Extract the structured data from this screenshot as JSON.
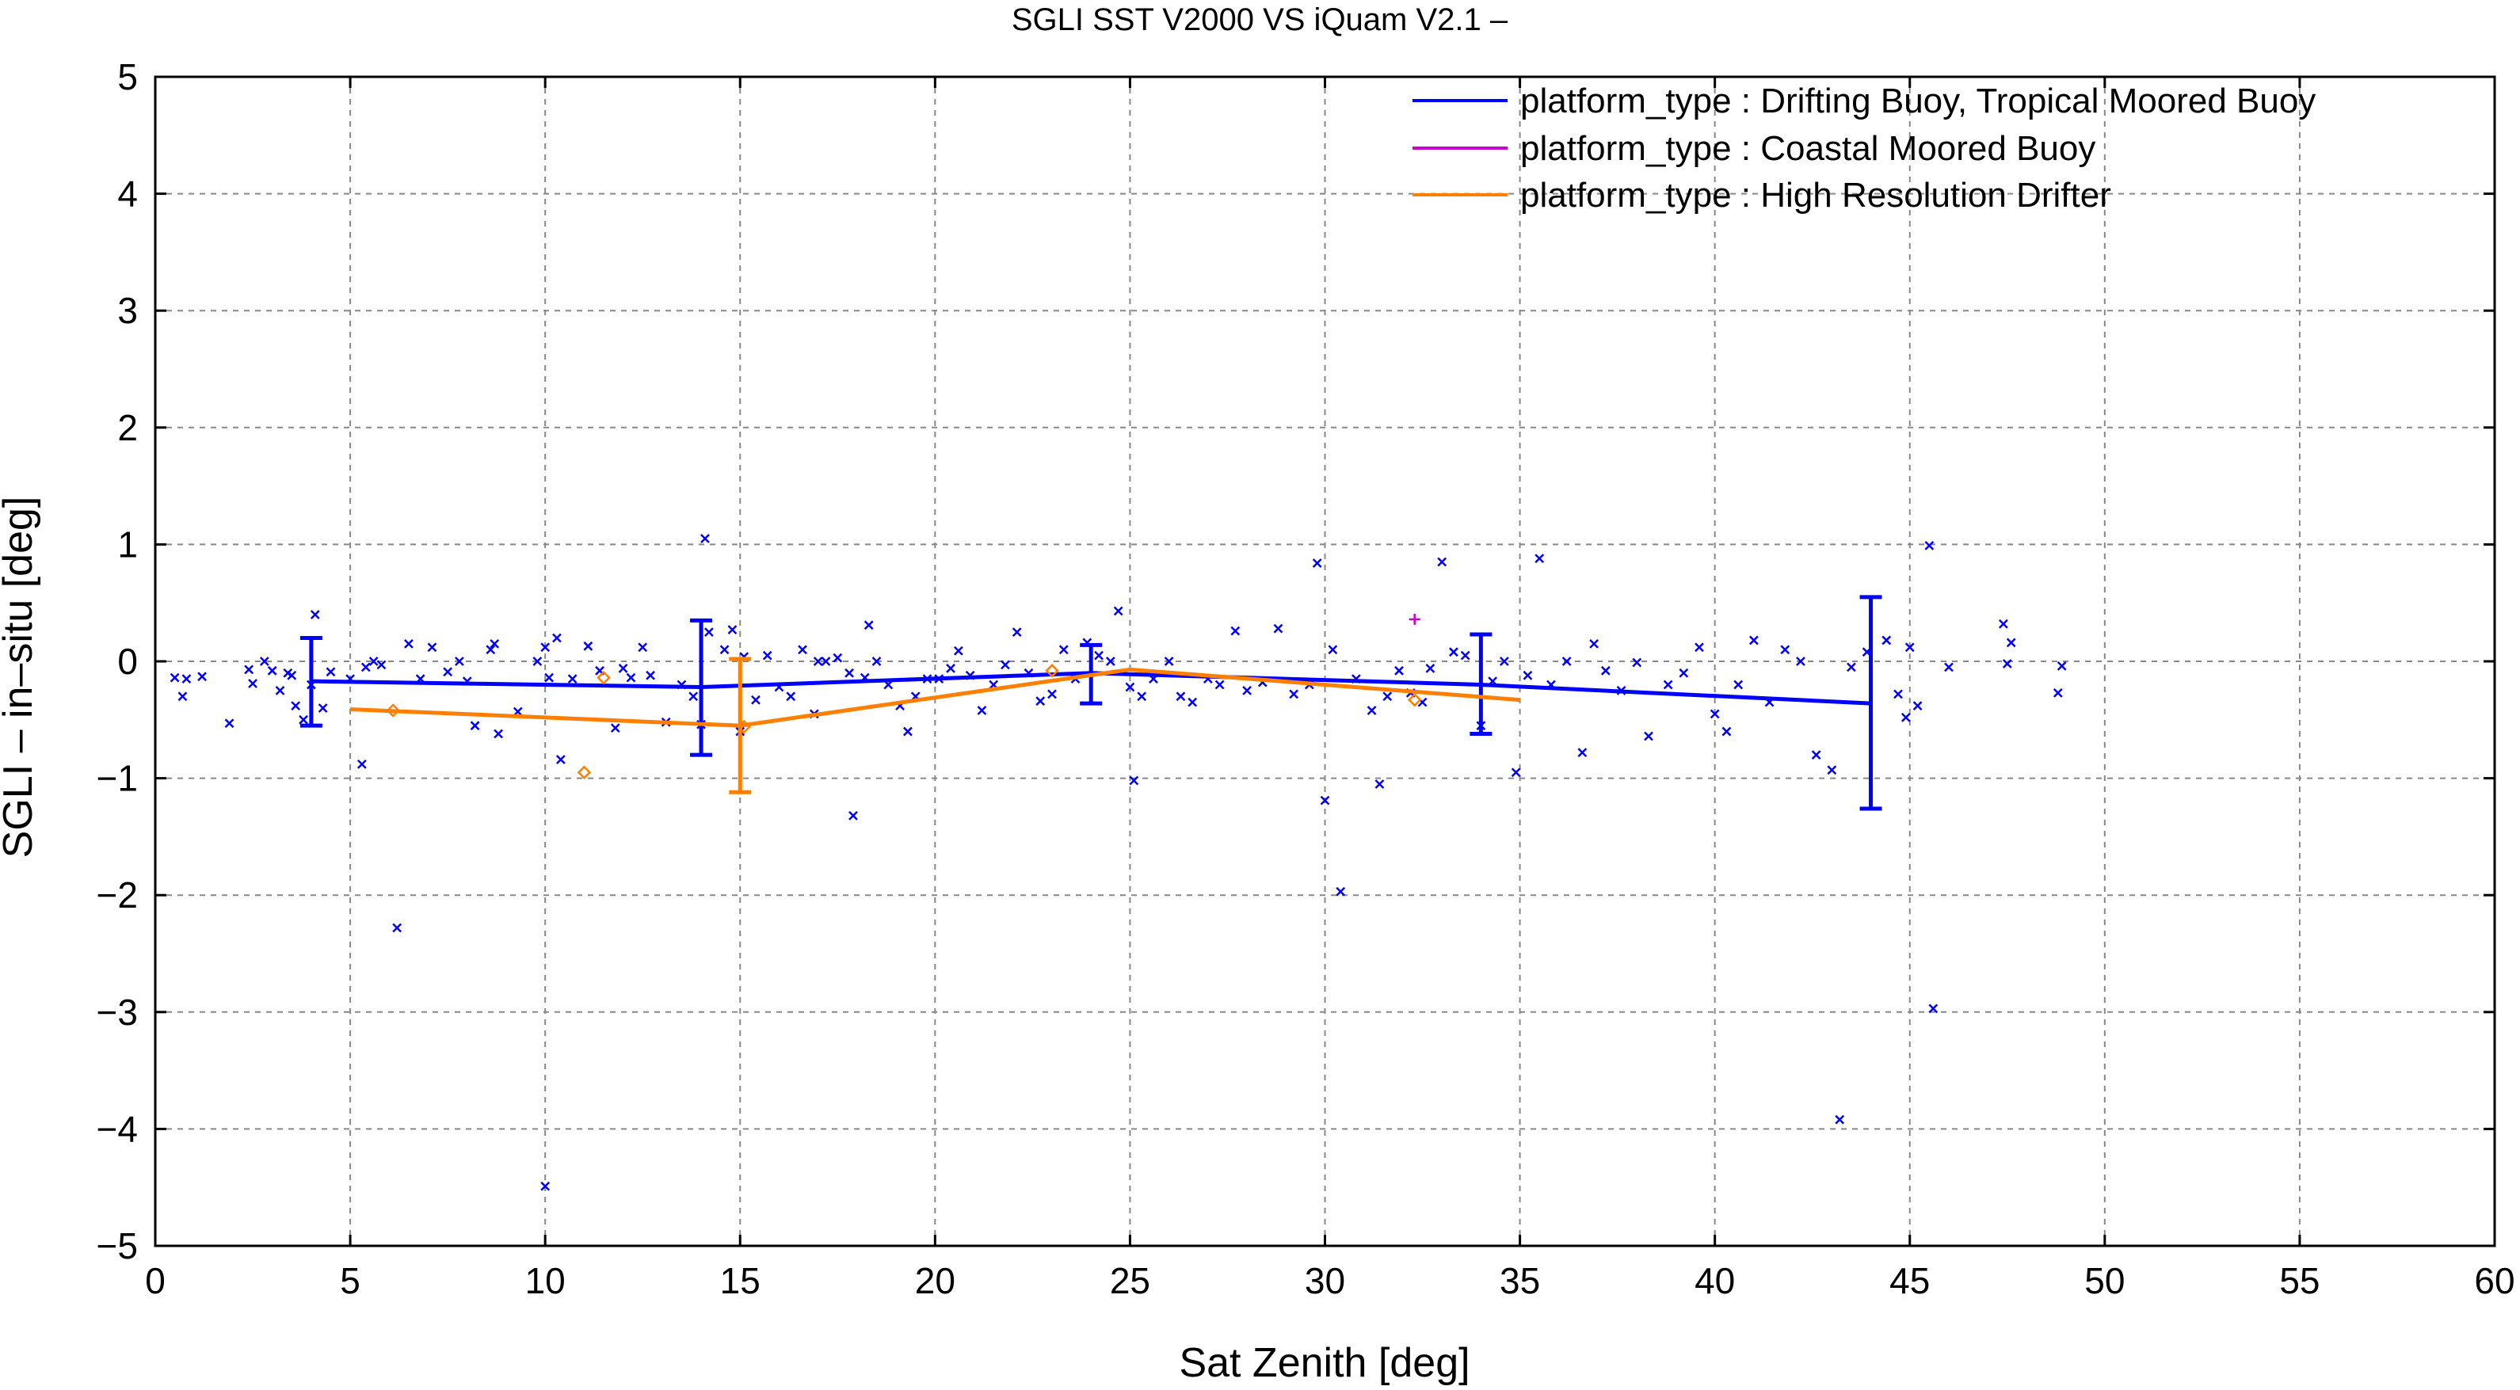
{
  "chart_data": {
    "type": "scatter",
    "title": "SGLI SST V2000 VS iQuam V2.1  –",
    "xlabel": "Sat Zenith [deg]",
    "ylabel": "SGLI – in–situ [deg]",
    "xlim": [
      0,
      60
    ],
    "ylim": [
      -5,
      5
    ],
    "xticks": [
      0,
      5,
      10,
      15,
      20,
      25,
      30,
      35,
      40,
      45,
      50,
      55,
      60
    ],
    "xtick_labels": [
      "0",
      "5",
      "10",
      "15",
      "20",
      "25",
      "30",
      "35",
      "40",
      "45",
      "50",
      "55",
      "60"
    ],
    "yticks": [
      5,
      4,
      3,
      2,
      1,
      0,
      -1,
      -2,
      -3,
      -4,
      -5
    ],
    "ytick_labels": [
      "5",
      "4",
      "3",
      "2",
      "1",
      "0",
      "−1",
      "−2",
      "−3",
      "−4",
      "−5"
    ],
    "grid": true,
    "legend_position": "top-right",
    "series": [
      {
        "name": "platform_type : Drifting Buoy, Tropical Moored Buoy",
        "color": "#0000ff",
        "marker": "x",
        "points": [
          [
            0.5,
            -0.14
          ],
          [
            0.7,
            -0.3
          ],
          [
            0.8,
            -0.15
          ],
          [
            1.2,
            -0.13
          ],
          [
            1.9,
            -0.53
          ],
          [
            2.4,
            -0.07
          ],
          [
            2.5,
            -0.19
          ],
          [
            2.8,
            0.0
          ],
          [
            3.0,
            -0.08
          ],
          [
            3.2,
            -0.25
          ],
          [
            3.4,
            -0.1
          ],
          [
            3.5,
            -0.12
          ],
          [
            3.6,
            -0.38
          ],
          [
            3.8,
            -0.5
          ],
          [
            4.0,
            -0.2
          ],
          [
            4.1,
            0.4
          ],
          [
            4.3,
            -0.4
          ],
          [
            4.5,
            -0.09
          ],
          [
            5.0,
            -0.15
          ],
          [
            5.3,
            -0.88
          ],
          [
            5.4,
            -0.05
          ],
          [
            5.6,
            0.0
          ],
          [
            5.8,
            -0.03
          ],
          [
            6.2,
            -2.28
          ],
          [
            6.5,
            0.15
          ],
          [
            6.8,
            -0.15
          ],
          [
            7.1,
            0.12
          ],
          [
            7.5,
            -0.09
          ],
          [
            7.8,
            0.0
          ],
          [
            8.0,
            -0.17
          ],
          [
            8.2,
            -0.55
          ],
          [
            8.6,
            0.1
          ],
          [
            8.7,
            0.15
          ],
          [
            8.8,
            -0.62
          ],
          [
            9.3,
            -0.43
          ],
          [
            9.8,
            0.0
          ],
          [
            10.0,
            0.12
          ],
          [
            10.0,
            -4.49
          ],
          [
            10.1,
            -0.14
          ],
          [
            10.3,
            0.2
          ],
          [
            10.4,
            -0.84
          ],
          [
            10.7,
            -0.15
          ],
          [
            11.1,
            0.13
          ],
          [
            11.4,
            -0.08
          ],
          [
            11.8,
            -0.57
          ],
          [
            12.0,
            -0.06
          ],
          [
            12.2,
            -0.14
          ],
          [
            12.5,
            0.12
          ],
          [
            12.7,
            -0.12
          ],
          [
            13.1,
            -0.52
          ],
          [
            13.5,
            -0.2
          ],
          [
            13.8,
            -0.3
          ],
          [
            14.0,
            -0.54
          ],
          [
            14.1,
            1.05
          ],
          [
            14.2,
            0.25
          ],
          [
            14.6,
            0.1
          ],
          [
            14.8,
            0.27
          ],
          [
            15.0,
            -0.6
          ],
          [
            15.1,
            0.04
          ],
          [
            15.4,
            -0.33
          ],
          [
            15.7,
            0.05
          ],
          [
            16.0,
            -0.22
          ],
          [
            16.3,
            -0.3
          ],
          [
            16.6,
            0.1
          ],
          [
            16.9,
            -0.45
          ],
          [
            17.0,
            0.0
          ],
          [
            17.2,
            0.0
          ],
          [
            17.5,
            0.03
          ],
          [
            17.8,
            -0.1
          ],
          [
            17.9,
            -1.32
          ],
          [
            18.2,
            -0.14
          ],
          [
            18.3,
            0.31
          ],
          [
            18.5,
            0.0
          ],
          [
            18.8,
            -0.2
          ],
          [
            19.1,
            -0.38
          ],
          [
            19.3,
            -0.6
          ],
          [
            19.5,
            -0.3
          ],
          [
            19.8,
            -0.15
          ],
          [
            20.1,
            -0.15
          ],
          [
            20.4,
            -0.06
          ],
          [
            20.6,
            0.09
          ],
          [
            20.9,
            -0.12
          ],
          [
            21.2,
            -0.42
          ],
          [
            21.5,
            -0.2
          ],
          [
            21.8,
            -0.03
          ],
          [
            22.1,
            0.25
          ],
          [
            22.4,
            -0.1
          ],
          [
            22.7,
            -0.34
          ],
          [
            23.0,
            -0.28
          ],
          [
            23.3,
            0.1
          ],
          [
            23.6,
            -0.15
          ],
          [
            23.9,
            0.16
          ],
          [
            24.2,
            0.05
          ],
          [
            24.5,
            0.0
          ],
          [
            24.7,
            0.43
          ],
          [
            25.0,
            -0.22
          ],
          [
            25.1,
            -1.02
          ],
          [
            25.3,
            -0.3
          ],
          [
            25.6,
            -0.15
          ],
          [
            26.0,
            0.0
          ],
          [
            26.3,
            -0.3
          ],
          [
            26.6,
            -0.35
          ],
          [
            27.0,
            -0.15
          ],
          [
            27.3,
            -0.2
          ],
          [
            27.7,
            0.26
          ],
          [
            28.0,
            -0.25
          ],
          [
            28.4,
            -0.18
          ],
          [
            28.8,
            0.28
          ],
          [
            29.2,
            -0.28
          ],
          [
            29.6,
            -0.2
          ],
          [
            29.8,
            0.84
          ],
          [
            30.0,
            -1.19
          ],
          [
            30.2,
            0.1
          ],
          [
            30.4,
            -1.97
          ],
          [
            30.8,
            -0.15
          ],
          [
            31.2,
            -0.42
          ],
          [
            31.4,
            -1.05
          ],
          [
            31.6,
            -0.3
          ],
          [
            31.9,
            -0.08
          ],
          [
            32.2,
            -0.27
          ],
          [
            32.5,
            -0.35
          ],
          [
            32.7,
            -0.06
          ],
          [
            33.0,
            0.85
          ],
          [
            33.3,
            0.08
          ],
          [
            33.6,
            0.05
          ],
          [
            34.0,
            -0.55
          ],
          [
            34.3,
            -0.17
          ],
          [
            34.6,
            0.0
          ],
          [
            34.9,
            -0.95
          ],
          [
            35.2,
            -0.12
          ],
          [
            35.5,
            0.88
          ],
          [
            35.8,
            -0.2
          ],
          [
            36.2,
            0.0
          ],
          [
            36.6,
            -0.78
          ],
          [
            36.9,
            0.15
          ],
          [
            37.2,
            -0.08
          ],
          [
            37.6,
            -0.25
          ],
          [
            38.0,
            -0.01
          ],
          [
            38.3,
            -0.64
          ],
          [
            38.8,
            -0.2
          ],
          [
            39.2,
            -0.1
          ],
          [
            39.6,
            0.12
          ],
          [
            40.0,
            -0.45
          ],
          [
            40.3,
            -0.6
          ],
          [
            40.6,
            -0.2
          ],
          [
            41.0,
            0.18
          ],
          [
            41.4,
            -0.35
          ],
          [
            41.8,
            0.1
          ],
          [
            42.2,
            0.0
          ],
          [
            42.6,
            -0.8
          ],
          [
            43.0,
            -0.93
          ],
          [
            43.2,
            -3.92
          ],
          [
            43.5,
            -0.05
          ],
          [
            43.9,
            0.08
          ],
          [
            44.4,
            0.18
          ],
          [
            44.7,
            -0.28
          ],
          [
            44.9,
            -0.48
          ],
          [
            45.0,
            0.12
          ],
          [
            45.2,
            -0.38
          ],
          [
            45.5,
            0.99
          ],
          [
            45.6,
            -2.97
          ],
          [
            46.0,
            -0.05
          ],
          [
            47.4,
            0.32
          ],
          [
            47.5,
            -0.02
          ],
          [
            47.6,
            0.16
          ],
          [
            48.8,
            -0.27
          ],
          [
            48.9,
            -0.04
          ]
        ],
        "mean_line": {
          "x": [
            4,
            14,
            24,
            34,
            44
          ],
          "y": [
            -0.17,
            -0.22,
            -0.1,
            -0.2,
            -0.36
          ]
        },
        "error_bars": [
          [
            4,
            -0.55,
            0.2
          ],
          [
            14,
            -0.8,
            0.35
          ],
          [
            24,
            -0.36,
            0.14
          ],
          [
            34,
            -0.62,
            0.23
          ],
          [
            44,
            -1.26,
            0.55
          ]
        ]
      },
      {
        "name": "platform_type : Coastal Moored Buoy",
        "color": "#cc00cc",
        "marker": "+",
        "points": [
          [
            32.3,
            0.36
          ]
        ],
        "mean_line": {
          "x": [],
          "y": []
        },
        "error_bars": []
      },
      {
        "name": "platform_type : High Resolution Drifter",
        "color": "#ff8000",
        "marker": "diamond",
        "points": [
          [
            6.1,
            -0.42
          ],
          [
            11.0,
            -0.95
          ],
          [
            11.5,
            -0.14
          ],
          [
            15.1,
            -0.56
          ],
          [
            23.0,
            -0.08
          ],
          [
            32.3,
            -0.33
          ]
        ],
        "mean_line": {
          "x": [
            5,
            15,
            25,
            35
          ],
          "y": [
            -0.41,
            -0.55,
            -0.07,
            -0.33
          ]
        },
        "error_bars": [
          [
            15,
            -1.12,
            0.02
          ]
        ]
      }
    ]
  }
}
